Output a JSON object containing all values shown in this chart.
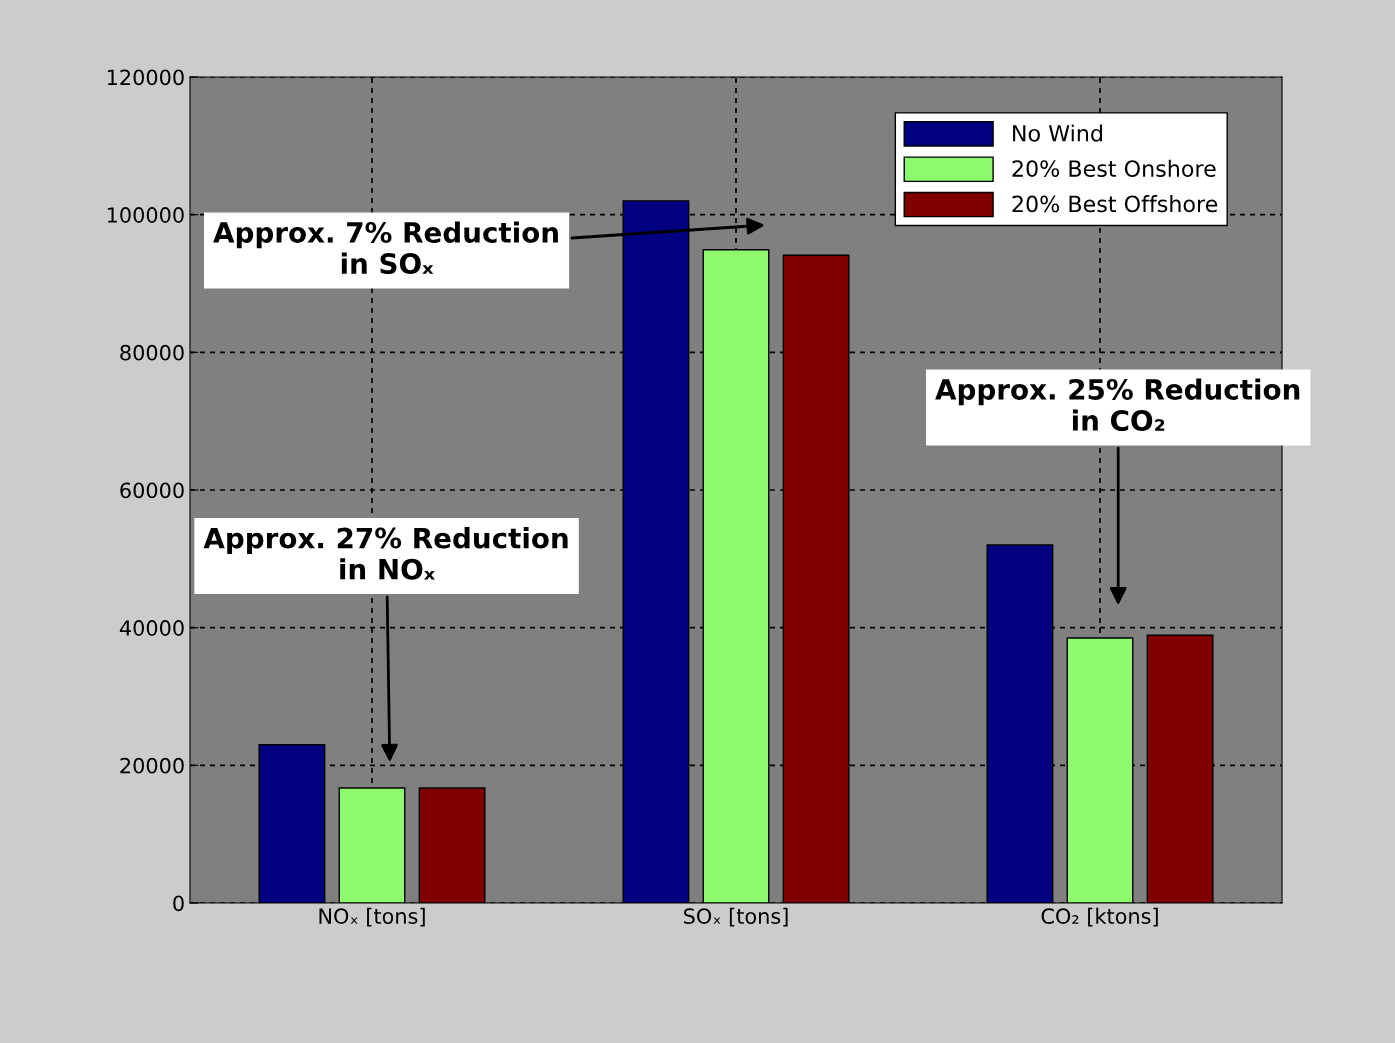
{
  "chart_data": {
    "type": "bar",
    "categories": [
      "NOₓ [tons]",
      "SOₓ [tons]",
      "CO₂ [ktons]"
    ],
    "series": [
      {
        "name": "No Wind",
        "color": "#000080",
        "values": [
          23000,
          102000,
          52000
        ]
      },
      {
        "name": "20% Best Onshore",
        "color": "#8cfa6c",
        "values": [
          16700,
          94900,
          38500
        ]
      },
      {
        "name": "20% Best Offshore",
        "color": "#800000",
        "values": [
          16700,
          94100,
          38900
        ]
      }
    ],
    "ylim": [
      0,
      120000
    ],
    "yticks": [
      0,
      20000,
      40000,
      60000,
      80000,
      100000,
      120000
    ],
    "grid": true,
    "legend": "top right",
    "annotations": [
      "Approx. 7% Reduction\nin SOₓ",
      "Approx. 27% Reduction\nin NOₓ",
      "Approx. 25% Reduction\nin CO₂"
    ]
  }
}
